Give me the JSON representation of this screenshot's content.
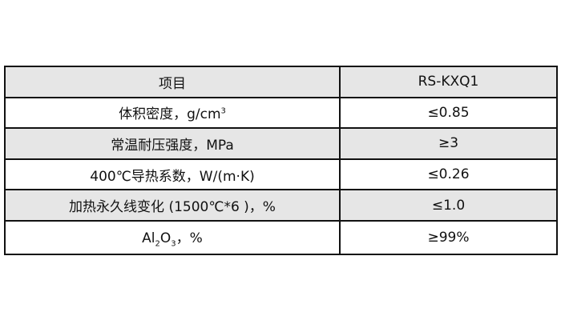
{
  "table": {
    "header": [
      "项目",
      "RS-KXQ1"
    ],
    "rows": [
      {
        "item": "体积密度，g/cm",
        "item_sup": "3",
        "value": "≤0.85"
      },
      {
        "item": "常温耐压强度，MPa",
        "value": "≥3"
      },
      {
        "item": "400℃导热系数，W/(m·K)",
        "value": "≤0.26"
      },
      {
        "item": "加热永久线变化 (1500℃*6 )，%",
        "value": "≤1.0"
      },
      {
        "item_parts": [
          "Al",
          "2",
          "O",
          "3",
          "，%"
        ],
        "value": "≥99%"
      }
    ]
  }
}
